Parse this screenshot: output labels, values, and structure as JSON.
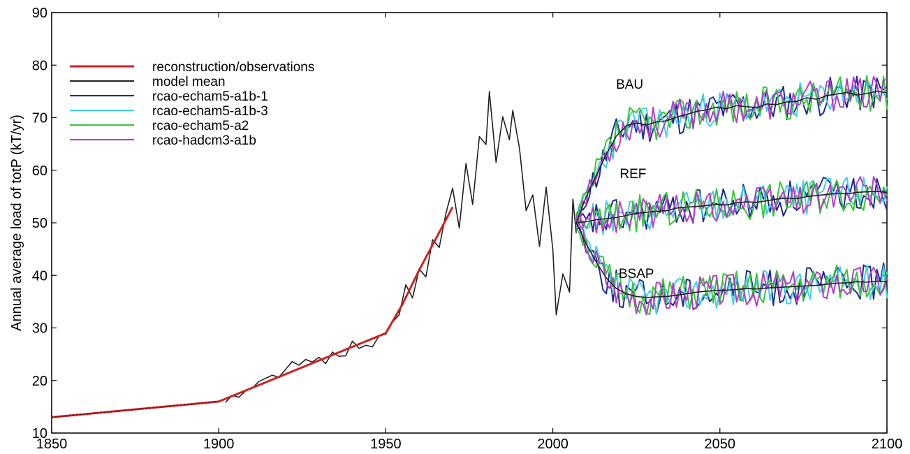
{
  "chart_data": {
    "type": "line",
    "title": "",
    "xlabel": "",
    "ylabel": "Annual average load of totP (kT/yr)",
    "xlim": [
      1850,
      2100
    ],
    "ylim": [
      10,
      90
    ],
    "xticks": [
      1850,
      1900,
      1950,
      2000,
      2050,
      2100
    ],
    "yticks": [
      10,
      20,
      30,
      40,
      50,
      60,
      70,
      80,
      90
    ],
    "grid": false,
    "legend_position": "top-left",
    "legend": [
      {
        "name": "reconstruction/observations",
        "color": "#cc2222"
      },
      {
        "name": "model mean",
        "color": "#222222"
      },
      {
        "name": "rcao-echam5-a1b-1",
        "color": "#1f2a8c"
      },
      {
        "name": "rcao-echam5-a1b-3",
        "color": "#3fd0e6"
      },
      {
        "name": "rcao-echam5-a2",
        "color": "#3ac43a"
      },
      {
        "name": "rcao-hadcm3-a1b",
        "color": "#b43cc8"
      }
    ],
    "annotations": [
      {
        "text": "BAU",
        "x": 2023,
        "y": 75.5
      },
      {
        "text": "REF",
        "x": 2024,
        "y": 58.5
      },
      {
        "text": "BSAP",
        "x": 2025,
        "y": 39.5
      }
    ],
    "reconstruction": {
      "name": "reconstruction/observations",
      "color": "#cc2222",
      "x": [
        1850,
        1900,
        1950,
        1955,
        1960,
        1965,
        1970
      ],
      "y": [
        13,
        16,
        29,
        34.5,
        41,
        47,
        53
      ]
    },
    "historical": {
      "name": "model mean",
      "color": "#222222",
      "x": [
        1902,
        1904,
        1906,
        1908,
        1910,
        1912,
        1914,
        1916,
        1918,
        1920,
        1922,
        1924,
        1926,
        1928,
        1930,
        1932,
        1934,
        1936,
        1938,
        1940,
        1942,
        1944,
        1946,
        1948,
        1950,
        1952,
        1954,
        1956,
        1958,
        1960,
        1962,
        1964,
        1966,
        1968,
        1970,
        1972,
        1974,
        1976,
        1978,
        1980,
        1981,
        1983,
        1985,
        1987,
        1988,
        1990,
        1992,
        1994,
        1996,
        1998,
        2000,
        2001,
        2003,
        2005,
        2006,
        2007
      ],
      "y": [
        15.8,
        17.2,
        16.8,
        18,
        18.5,
        19.8,
        20.4,
        21,
        20.6,
        22.1,
        23.6,
        22.9,
        24,
        23.5,
        24.4,
        23.2,
        25.4,
        24.6,
        24.7,
        27.5,
        26.1,
        26.7,
        26.4,
        28.5,
        28.8,
        31.1,
        32.5,
        38.2,
        35.7,
        41.2,
        39.7,
        46.8,
        45.3,
        51.8,
        56.6,
        49,
        61.3,
        53.5,
        66.4,
        64.9,
        75,
        61.5,
        70.2,
        65.8,
        71.4,
        64.2,
        52.3,
        55.3,
        45.5,
        56.8,
        44.9,
        32.5,
        40.3,
        36.8,
        54.5,
        48
      ]
    },
    "model_mean_future": {
      "name": "model mean",
      "color": "#222222",
      "BAU": {
        "x": [
          2007,
          2010,
          2013,
          2016,
          2019,
          2022,
          2025,
          2028,
          2031,
          2034,
          2037,
          2040,
          2043,
          2046,
          2049,
          2052,
          2055,
          2058,
          2061,
          2064,
          2067,
          2070,
          2073,
          2076,
          2079,
          2082,
          2085,
          2088,
          2091,
          2094,
          2097,
          2100
        ],
        "y": [
          50,
          55,
          59,
          63,
          66.5,
          68.5,
          69,
          68.6,
          69.2,
          69.4,
          70.1,
          70.6,
          71.2,
          71.5,
          72,
          71.7,
          72.3,
          72.1,
          71.9,
          72.6,
          72.5,
          73,
          73.1,
          73.8,
          73.5,
          74.2,
          74.5,
          74.8,
          74.3,
          74.6,
          75,
          74.8
        ]
      },
      "REF": {
        "x": [
          2007,
          2010,
          2013,
          2016,
          2019,
          2022,
          2025,
          2028,
          2031,
          2034,
          2037,
          2040,
          2043,
          2046,
          2049,
          2052,
          2055,
          2058,
          2061,
          2064,
          2067,
          2070,
          2073,
          2076,
          2079,
          2082,
          2085,
          2088,
          2091,
          2094,
          2097,
          2100
        ],
        "y": [
          50,
          50.2,
          50.6,
          50.8,
          51,
          51.4,
          51.8,
          52,
          52.2,
          52.3,
          52.8,
          53,
          53.1,
          53.3,
          53.5,
          53.4,
          53.8,
          54,
          53.9,
          54.2,
          54.5,
          54.7,
          54.6,
          55,
          55.2,
          55.4,
          55.6,
          55.5,
          55.8,
          55.9,
          56,
          55.8
        ]
      },
      "BSAP": {
        "x": [
          2007,
          2010,
          2013,
          2016,
          2019,
          2022,
          2025,
          2028,
          2031,
          2034,
          2037,
          2040,
          2043,
          2046,
          2049,
          2052,
          2055,
          2058,
          2061,
          2064,
          2067,
          2070,
          2073,
          2076,
          2079,
          2082,
          2085,
          2088,
          2091,
          2094,
          2097,
          2100
        ],
        "y": [
          50,
          46,
          42.5,
          39.5,
          37.5,
          36.5,
          36,
          35.8,
          35.9,
          36,
          36.2,
          36.5,
          36.8,
          37,
          37.1,
          37.2,
          37.3,
          37.5,
          37.4,
          37.6,
          37.7,
          37.8,
          37.9,
          38,
          38.1,
          38.3,
          38.5,
          38.6,
          38.8,
          38.7,
          38.9,
          38.8
        ]
      }
    },
    "series": [
      {
        "name": "rcao-echam5-a1b-1",
        "color": "#1f2a8c",
        "amplitude": 3.6,
        "seed": 11
      },
      {
        "name": "rcao-echam5-a1b-3",
        "color": "#3fd0e6",
        "amplitude": 3.4,
        "seed": 23
      },
      {
        "name": "rcao-echam5-a2",
        "color": "#3ac43a",
        "amplitude": 3.5,
        "seed": 37
      },
      {
        "name": "rcao-hadcm3-a1b",
        "color": "#b43cc8",
        "amplitude": 3.3,
        "seed": 53
      }
    ],
    "scenarios": [
      "BAU",
      "REF",
      "BSAP"
    ]
  }
}
